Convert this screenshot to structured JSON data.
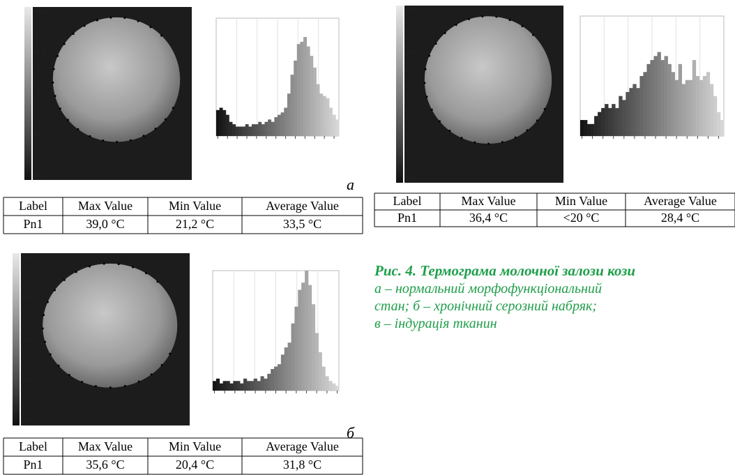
{
  "panels": [
    {
      "letter": "а",
      "colorbar": [
        "38.5",
        "33.9",
        "29.3",
        "24.7",
        "20.1"
      ],
      "histogram": {
        "ylim": [
          0,
          5
        ],
        "values": [
          1.1,
          1.2,
          1.1,
          0.9,
          0.6,
          0.5,
          0.4,
          0.4,
          0.4,
          0.5,
          0.4,
          0.5,
          0.5,
          0.6,
          0.5,
          0.6,
          0.7,
          0.6,
          0.8,
          0.9,
          1.0,
          1.2,
          1.8,
          2.6,
          3.2,
          3.9,
          4.0,
          4.2,
          3.8,
          3.4,
          2.9,
          2.2,
          1.8,
          1.7,
          1.6,
          1.2,
          0.9,
          0.7
        ]
      },
      "table": {
        "header": [
          "Label",
          "Max Value",
          "Min Value",
          "Average Value"
        ],
        "row": [
          "Pn1",
          "39,0 °C",
          "21,2 °C",
          "33,5 °C"
        ]
      }
    },
    {
      "colorbar": [
        "34.0",
        "30.5",
        "27.0",
        "23.5",
        "20.0"
      ],
      "histogram": {
        "ylim": [
          0,
          3
        ],
        "values": [
          0.4,
          0.4,
          0.3,
          0.3,
          0.5,
          0.6,
          0.7,
          0.8,
          0.7,
          0.8,
          0.7,
          1.0,
          0.9,
          1.1,
          1.2,
          1.3,
          1.2,
          1.5,
          1.6,
          1.8,
          1.9,
          2.0,
          2.1,
          1.9,
          2.0,
          1.8,
          1.6,
          1.4,
          1.8,
          1.3,
          1.4,
          1.4,
          1.9,
          1.5,
          1.4,
          1.5,
          1.6,
          1.3,
          1.0,
          0.6,
          0.4
        ]
      },
      "table": {
        "header": [
          "Label",
          "Max Value",
          "Min Value",
          "Average Value"
        ],
        "row": [
          "Pn1",
          "36,4 °C",
          "<20 °C",
          "28,4 °C"
        ]
      }
    },
    {
      "letter": "б",
      "colorbar": [
        "37.3",
        "33.0",
        "28.6",
        "24.3",
        "20.0"
      ],
      "histogram": {
        "ylim": [
          0,
          5
        ],
        "values": [
          0.4,
          0.5,
          0.3,
          0.4,
          0.4,
          0.3,
          0.4,
          0.4,
          0.3,
          0.5,
          0.4,
          0.4,
          0.5,
          0.4,
          0.6,
          0.5,
          0.7,
          0.9,
          1.0,
          1.1,
          1.5,
          1.8,
          2.0,
          2.8,
          3.5,
          4.2,
          4.5,
          5.0,
          4.4,
          3.6,
          2.4,
          1.6,
          1.0,
          0.6,
          0.4,
          0.3,
          0.2
        ]
      },
      "table": {
        "header": [
          "Label",
          "Max Value",
          "Min Value",
          "Average Value"
        ],
        "row": [
          "Pn1",
          "35,6 °C",
          "20,4 °C",
          "31,8 °C"
        ]
      }
    }
  ],
  "caption": {
    "title": "Рис. 4. Термограма молочної залози кози",
    "lines": [
      "а – нормальний морфофункціональний",
      "стан; б – хронічний серозний набряк;",
      "в – індурація тканин"
    ]
  }
}
